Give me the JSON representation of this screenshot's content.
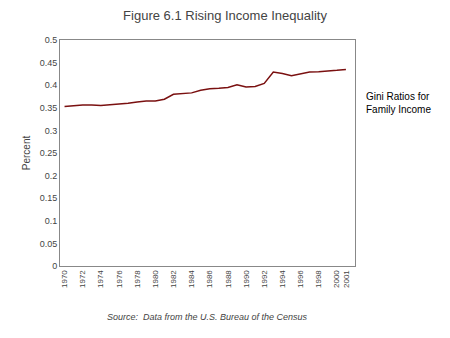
{
  "chart_data": {
    "type": "line",
    "title": "Figure 6.1 Rising Income Inequality",
    "y_label": "Percent",
    "annotations": [
      "Gini Ratios for\nFamily Income",
      "Source:  Data from the U.S. Bureau of the Census"
    ],
    "x": [
      1970,
      1971,
      1972,
      1973,
      1974,
      1975,
      1976,
      1977,
      1978,
      1979,
      1980,
      1981,
      1982,
      1983,
      1984,
      1985,
      1986,
      1987,
      1988,
      1989,
      1990,
      1991,
      1992,
      1993,
      1994,
      1995,
      1996,
      1997,
      1998,
      1999,
      2000,
      2001
    ],
    "values": [
      0.353,
      0.355,
      0.356,
      0.356,
      0.355,
      0.357,
      0.358,
      0.36,
      0.363,
      0.365,
      0.365,
      0.369,
      0.38,
      0.382,
      0.383,
      0.389,
      0.392,
      0.393,
      0.395,
      0.401,
      0.396,
      0.397,
      0.404,
      0.429,
      0.426,
      0.421,
      0.425,
      0.429,
      0.43,
      0.431,
      0.433,
      0.435
    ],
    "color": "#7a1010",
    "xlim": [
      1969.5,
      2002
    ],
    "xticks": [
      1970,
      1972,
      1974,
      1976,
      1978,
      1980,
      1982,
      1984,
      1986,
      1988,
      1990,
      1992,
      1994,
      1996,
      1998,
      2000,
      2001
    ],
    "ylim": [
      0,
      0.5
    ],
    "yticks": [
      0,
      0.05,
      0.1,
      0.15,
      0.2,
      0.25,
      0.3,
      0.35,
      0.4,
      0.45,
      0.5
    ],
    "grid": false
  }
}
